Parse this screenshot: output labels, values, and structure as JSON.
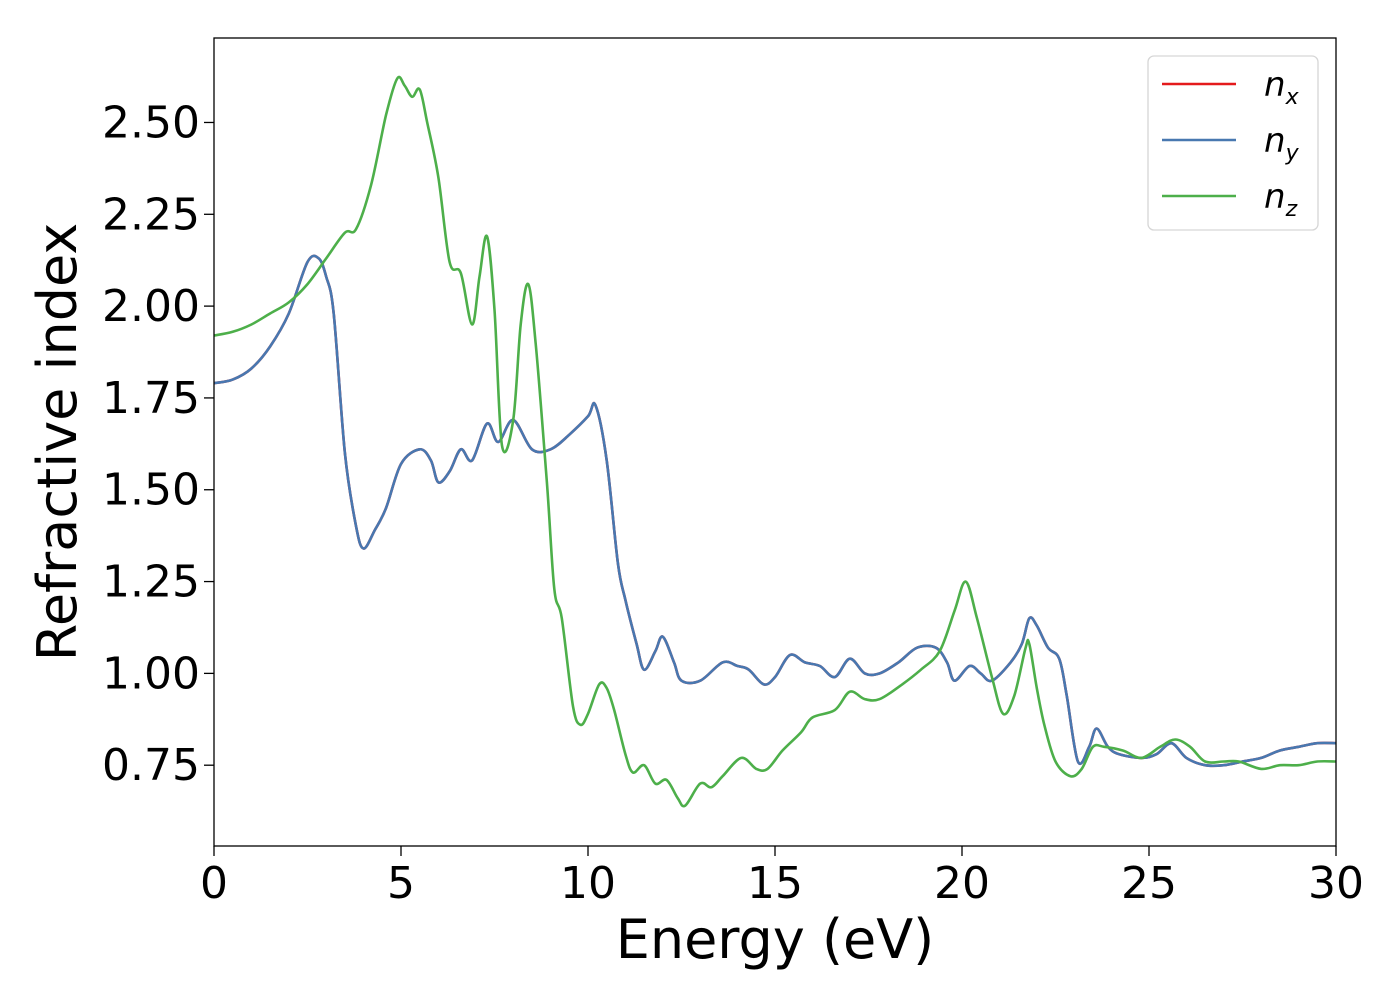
{
  "chart_data": {
    "type": "line",
    "xlabel": "Energy (eV)",
    "ylabel": "Refractive index",
    "xlim": [
      0,
      30
    ],
    "ylim": [
      0.53,
      2.73
    ],
    "xticks": [
      0,
      5,
      10,
      15,
      20,
      25,
      30
    ],
    "xtick_labels": [
      "0",
      "5",
      "10",
      "15",
      "20",
      "25",
      "30"
    ],
    "yticks": [
      0.75,
      1.0,
      1.25,
      1.5,
      1.75,
      2.0,
      2.25,
      2.5
    ],
    "ytick_labels": [
      "0.75",
      "1.00",
      "1.25",
      "1.50",
      "1.75",
      "2.00",
      "2.25",
      "2.50"
    ],
    "grid": false,
    "legend_position": "top-right",
    "series": [
      {
        "name": "n_x",
        "label_base": "n",
        "label_sub": "x",
        "color": "#e41a1c",
        "points": [
          [
            0,
            1.79
          ],
          [
            0.5,
            1.8
          ],
          [
            1,
            1.83
          ],
          [
            1.5,
            1.89
          ],
          [
            2,
            1.98
          ],
          [
            2.5,
            2.12
          ],
          [
            2.8,
            2.13
          ],
          [
            3.0,
            2.08
          ],
          [
            3.2,
            1.98
          ],
          [
            3.5,
            1.6
          ],
          [
            3.8,
            1.4
          ],
          [
            4.0,
            1.34
          ],
          [
            4.3,
            1.39
          ],
          [
            4.6,
            1.45
          ],
          [
            5,
            1.57
          ],
          [
            5.5,
            1.61
          ],
          [
            5.8,
            1.58
          ],
          [
            6.0,
            1.52
          ],
          [
            6.3,
            1.55
          ],
          [
            6.6,
            1.61
          ],
          [
            6.9,
            1.58
          ],
          [
            7.3,
            1.68
          ],
          [
            7.6,
            1.63
          ],
          [
            8.0,
            1.69
          ],
          [
            8.5,
            1.61
          ],
          [
            9.0,
            1.61
          ],
          [
            9.5,
            1.65
          ],
          [
            10.0,
            1.7
          ],
          [
            10.2,
            1.73
          ],
          [
            10.5,
            1.58
          ],
          [
            10.8,
            1.3
          ],
          [
            11.0,
            1.2
          ],
          [
            11.3,
            1.08
          ],
          [
            11.5,
            1.01
          ],
          [
            11.8,
            1.06
          ],
          [
            12.0,
            1.1
          ],
          [
            12.3,
            1.03
          ],
          [
            12.5,
            0.98
          ],
          [
            13.0,
            0.98
          ],
          [
            13.6,
            1.03
          ],
          [
            14.0,
            1.02
          ],
          [
            14.3,
            1.01
          ],
          [
            14.7,
            0.97
          ],
          [
            15.0,
            0.99
          ],
          [
            15.4,
            1.05
          ],
          [
            15.8,
            1.03
          ],
          [
            16.2,
            1.02
          ],
          [
            16.6,
            0.99
          ],
          [
            17.0,
            1.04
          ],
          [
            17.4,
            1.0
          ],
          [
            17.8,
            1.0
          ],
          [
            18.3,
            1.03
          ],
          [
            18.8,
            1.07
          ],
          [
            19.3,
            1.07
          ],
          [
            19.6,
            1.03
          ],
          [
            19.8,
            0.98
          ],
          [
            20.2,
            1.02
          ],
          [
            20.5,
            1.0
          ],
          [
            20.8,
            0.98
          ],
          [
            21.3,
            1.03
          ],
          [
            21.6,
            1.08
          ],
          [
            21.8,
            1.15
          ],
          [
            22.0,
            1.13
          ],
          [
            22.3,
            1.07
          ],
          [
            22.6,
            1.04
          ],
          [
            22.8,
            0.94
          ],
          [
            23.1,
            0.76
          ],
          [
            23.4,
            0.8
          ],
          [
            23.6,
            0.85
          ],
          [
            23.9,
            0.8
          ],
          [
            24.2,
            0.78
          ],
          [
            24.8,
            0.77
          ],
          [
            25.2,
            0.78
          ],
          [
            25.6,
            0.81
          ],
          [
            26.0,
            0.77
          ],
          [
            26.5,
            0.75
          ],
          [
            27.0,
            0.75
          ],
          [
            27.5,
            0.76
          ],
          [
            28.0,
            0.77
          ],
          [
            28.5,
            0.79
          ],
          [
            29.0,
            0.8
          ],
          [
            29.5,
            0.81
          ],
          [
            30.0,
            0.81
          ]
        ]
      },
      {
        "name": "n_y",
        "label_base": "n",
        "label_sub": "y",
        "color": "#4878b0",
        "points": [
          [
            0,
            1.79
          ],
          [
            0.5,
            1.8
          ],
          [
            1,
            1.83
          ],
          [
            1.5,
            1.89
          ],
          [
            2,
            1.98
          ],
          [
            2.5,
            2.12
          ],
          [
            2.8,
            2.13
          ],
          [
            3.0,
            2.08
          ],
          [
            3.2,
            1.98
          ],
          [
            3.5,
            1.6
          ],
          [
            3.8,
            1.4
          ],
          [
            4.0,
            1.34
          ],
          [
            4.3,
            1.39
          ],
          [
            4.6,
            1.45
          ],
          [
            5,
            1.57
          ],
          [
            5.5,
            1.61
          ],
          [
            5.8,
            1.58
          ],
          [
            6.0,
            1.52
          ],
          [
            6.3,
            1.55
          ],
          [
            6.6,
            1.61
          ],
          [
            6.9,
            1.58
          ],
          [
            7.3,
            1.68
          ],
          [
            7.6,
            1.63
          ],
          [
            8.0,
            1.69
          ],
          [
            8.5,
            1.61
          ],
          [
            9.0,
            1.61
          ],
          [
            9.5,
            1.65
          ],
          [
            10.0,
            1.7
          ],
          [
            10.2,
            1.73
          ],
          [
            10.5,
            1.58
          ],
          [
            10.8,
            1.3
          ],
          [
            11.0,
            1.2
          ],
          [
            11.3,
            1.08
          ],
          [
            11.5,
            1.01
          ],
          [
            11.8,
            1.06
          ],
          [
            12.0,
            1.1
          ],
          [
            12.3,
            1.03
          ],
          [
            12.5,
            0.98
          ],
          [
            13.0,
            0.98
          ],
          [
            13.6,
            1.03
          ],
          [
            14.0,
            1.02
          ],
          [
            14.3,
            1.01
          ],
          [
            14.7,
            0.97
          ],
          [
            15.0,
            0.99
          ],
          [
            15.4,
            1.05
          ],
          [
            15.8,
            1.03
          ],
          [
            16.2,
            1.02
          ],
          [
            16.6,
            0.99
          ],
          [
            17.0,
            1.04
          ],
          [
            17.4,
            1.0
          ],
          [
            17.8,
            1.0
          ],
          [
            18.3,
            1.03
          ],
          [
            18.8,
            1.07
          ],
          [
            19.3,
            1.07
          ],
          [
            19.6,
            1.03
          ],
          [
            19.8,
            0.98
          ],
          [
            20.2,
            1.02
          ],
          [
            20.5,
            1.0
          ],
          [
            20.8,
            0.98
          ],
          [
            21.3,
            1.03
          ],
          [
            21.6,
            1.08
          ],
          [
            21.8,
            1.15
          ],
          [
            22.0,
            1.13
          ],
          [
            22.3,
            1.07
          ],
          [
            22.6,
            1.04
          ],
          [
            22.8,
            0.94
          ],
          [
            23.1,
            0.76
          ],
          [
            23.4,
            0.8
          ],
          [
            23.6,
            0.85
          ],
          [
            23.9,
            0.8
          ],
          [
            24.2,
            0.78
          ],
          [
            24.8,
            0.77
          ],
          [
            25.2,
            0.78
          ],
          [
            25.6,
            0.81
          ],
          [
            26.0,
            0.77
          ],
          [
            26.5,
            0.75
          ],
          [
            27.0,
            0.75
          ],
          [
            27.5,
            0.76
          ],
          [
            28.0,
            0.77
          ],
          [
            28.5,
            0.79
          ],
          [
            29.0,
            0.8
          ],
          [
            29.5,
            0.81
          ],
          [
            30.0,
            0.81
          ]
        ]
      },
      {
        "name": "n_z",
        "label_base": "n",
        "label_sub": "z",
        "color": "#4daf4a",
        "points": [
          [
            0,
            1.92
          ],
          [
            0.5,
            1.93
          ],
          [
            1,
            1.95
          ],
          [
            1.5,
            1.98
          ],
          [
            2,
            2.01
          ],
          [
            2.5,
            2.06
          ],
          [
            3,
            2.13
          ],
          [
            3.5,
            2.2
          ],
          [
            3.8,
            2.21
          ],
          [
            4.2,
            2.33
          ],
          [
            4.6,
            2.52
          ],
          [
            4.9,
            2.62
          ],
          [
            5.1,
            2.6
          ],
          [
            5.3,
            2.57
          ],
          [
            5.5,
            2.59
          ],
          [
            5.7,
            2.5
          ],
          [
            6.0,
            2.35
          ],
          [
            6.3,
            2.12
          ],
          [
            6.6,
            2.09
          ],
          [
            6.9,
            1.95
          ],
          [
            7.1,
            2.08
          ],
          [
            7.3,
            2.19
          ],
          [
            7.5,
            1.99
          ],
          [
            7.7,
            1.62
          ],
          [
            8.0,
            1.69
          ],
          [
            8.2,
            1.95
          ],
          [
            8.4,
            2.06
          ],
          [
            8.6,
            1.9
          ],
          [
            8.9,
            1.52
          ],
          [
            9.1,
            1.23
          ],
          [
            9.3,
            1.15
          ],
          [
            9.6,
            0.91
          ],
          [
            9.8,
            0.86
          ],
          [
            10.0,
            0.89
          ],
          [
            10.3,
            0.97
          ],
          [
            10.5,
            0.96
          ],
          [
            10.7,
            0.9
          ],
          [
            11.0,
            0.78
          ],
          [
            11.2,
            0.73
          ],
          [
            11.5,
            0.75
          ],
          [
            11.8,
            0.7
          ],
          [
            12.1,
            0.71
          ],
          [
            12.4,
            0.66
          ],
          [
            12.6,
            0.64
          ],
          [
            13.0,
            0.7
          ],
          [
            13.3,
            0.69
          ],
          [
            13.6,
            0.72
          ],
          [
            14.1,
            0.77
          ],
          [
            14.5,
            0.74
          ],
          [
            14.8,
            0.74
          ],
          [
            15.2,
            0.79
          ],
          [
            15.7,
            0.84
          ],
          [
            16.0,
            0.88
          ],
          [
            16.6,
            0.9
          ],
          [
            17.0,
            0.95
          ],
          [
            17.4,
            0.93
          ],
          [
            17.8,
            0.93
          ],
          [
            18.4,
            0.97
          ],
          [
            18.9,
            1.01
          ],
          [
            19.4,
            1.06
          ],
          [
            19.8,
            1.17
          ],
          [
            20.1,
            1.25
          ],
          [
            20.4,
            1.15
          ],
          [
            20.8,
            0.99
          ],
          [
            21.1,
            0.89
          ],
          [
            21.4,
            0.94
          ],
          [
            21.7,
            1.07
          ],
          [
            21.8,
            1.08
          ],
          [
            22.0,
            0.96
          ],
          [
            22.2,
            0.86
          ],
          [
            22.5,
            0.76
          ],
          [
            22.9,
            0.72
          ],
          [
            23.2,
            0.74
          ],
          [
            23.5,
            0.8
          ],
          [
            23.8,
            0.8
          ],
          [
            24.3,
            0.79
          ],
          [
            24.8,
            0.77
          ],
          [
            25.3,
            0.8
          ],
          [
            25.7,
            0.82
          ],
          [
            26.1,
            0.8
          ],
          [
            26.5,
            0.76
          ],
          [
            27.0,
            0.76
          ],
          [
            27.4,
            0.76
          ],
          [
            28.0,
            0.74
          ],
          [
            28.5,
            0.75
          ],
          [
            29.0,
            0.75
          ],
          [
            29.5,
            0.76
          ],
          [
            30.0,
            0.76
          ]
        ]
      }
    ]
  }
}
